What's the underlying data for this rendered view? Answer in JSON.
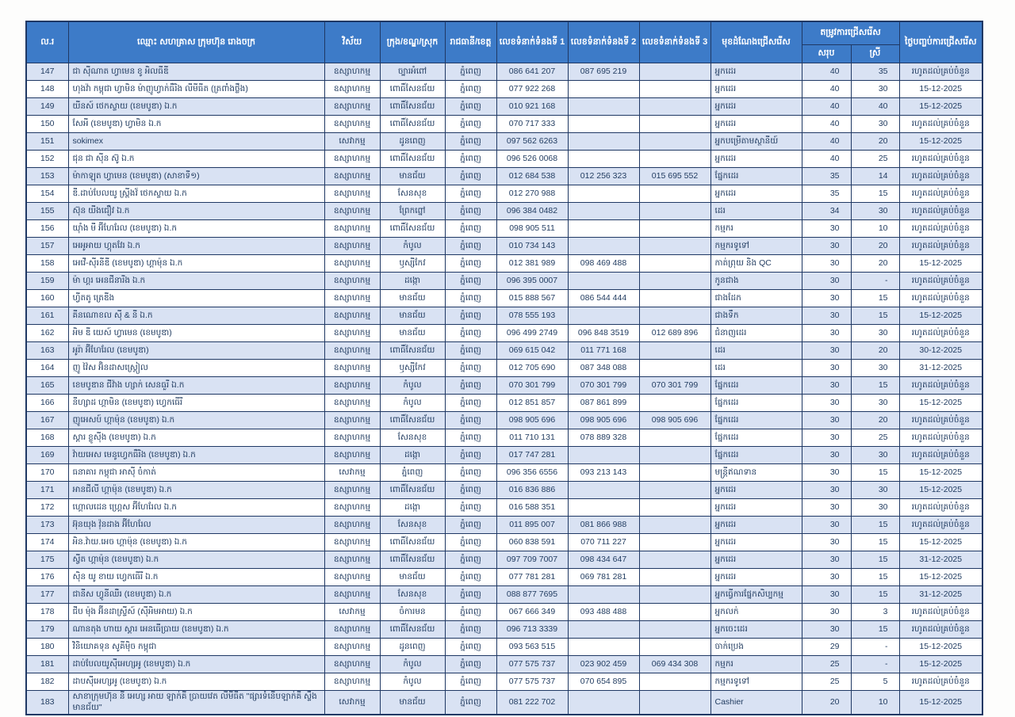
{
  "colors": {
    "header_bg": "#3d7bc8",
    "stripe_bg": "#d9e2f3",
    "border": "#1f3864",
    "text": "#1f3a5f"
  },
  "header": {
    "no": "ល.រ",
    "name": "ឈ្មោះ សហគ្រាស ក្រុមហ៊ុន រោងចក្រ",
    "sector": "វិស័យ",
    "district": "ក្រុង/ខណ្ឌ/ស្រុក",
    "province": "រាជធានី/ខេត្ត",
    "tel1": "លេខទំនាក់ទំនងទី 1",
    "tel2": "លេខទំនាក់ទំនងទី 2",
    "tel3": "លេខទំនាក់ទំនងទី 3",
    "position": "មុខដំណែងជ្រើសរើស",
    "need_group": "តម្រូវការជ្រើសរើស",
    "need_total": "សរុប",
    "need_female": "ស្រី",
    "deadline": "ថ្ងៃបញ្ចប់ការជ្រើសរើស"
  },
  "rows": [
    {
      "no": "147",
      "name": "ជា ស៊ីណាត ហ្វាមេន ខូ អិលធីឌី",
      "sector": "ឧស្សាហកម្ម",
      "district": "ច្បារអំពៅ",
      "province": "ភ្នំពេញ",
      "tel1": "086 641 207",
      "tel2": "087 695 219",
      "tel3": "",
      "position": "អ្នកដេរ",
      "total": "40",
      "female": "35",
      "deadline": "រហូតដល់គ្រប់ចំនួន"
    },
    {
      "no": "148",
      "name": "ហុងវ៉ា កម្ពុជា ហ្វាមិន ម៉ាញូហ្វាក់ធឺរិង លីមីធីត (ត្រពាំងថ្លឹង)",
      "sector": "ឧស្សាហកម្ម",
      "district": "ពោធិ៍សែនជ័យ",
      "province": "ភ្នំពេញ",
      "tel1": "077 922 268",
      "tel2": "",
      "tel3": "",
      "position": "អ្នកដេរ",
      "total": "40",
      "female": "30",
      "deadline": "15-12-2025"
    },
    {
      "no": "149",
      "name": "យីនស៍ ថេកស្ទាយ (ខេមបូឌា) ឯ.ក",
      "sector": "ឧស្សាហកម្ម",
      "district": "ពោធិ៍សែនជ័យ",
      "province": "ភ្នំពេញ",
      "tel1": "010 921 168",
      "tel2": "",
      "tel3": "",
      "position": "អ្នកដេរ",
      "total": "40",
      "female": "40",
      "deadline": "15-12-2025"
    },
    {
      "no": "150",
      "name": "សែអី (ខេមបូឌា) ហ្វាមិន ឯ.ក",
      "sector": "ឧស្សាហកម្ម",
      "district": "ពោធិ៍សែនជ័យ",
      "province": "ភ្នំពេញ",
      "tel1": "070 717 333",
      "tel2": "",
      "tel3": "",
      "position": "អ្នកដេរ",
      "total": "40",
      "female": "30",
      "deadline": "រហូតដល់គ្រប់ចំនួន"
    },
    {
      "no": "151",
      "name": "sokimex",
      "sector": "សេវាកម្ម",
      "district": "ដូនពេញ",
      "province": "ភ្នំពេញ",
      "tel1": "097 562 6263",
      "tel2": "",
      "tel3": "",
      "position": "អ្នកបម្រើតាមស្ថានីយ៍",
      "total": "40",
      "female": "20",
      "deadline": "15-12-2025"
    },
    {
      "no": "152",
      "name": "ជុន ជា ស៊ីន ស៊ូ ឯ.ក",
      "sector": "ឧស្សាហកម្ម",
      "district": "ពោធិ៍សែនជ័យ",
      "province": "ភ្នំពេញ",
      "tel1": "096 526 0068",
      "tel2": "",
      "tel3": "",
      "position": "អ្នកដេរ",
      "total": "40",
      "female": "25",
      "deadline": "រហូតដល់គ្រប់ចំនួន"
    },
    {
      "no": "153",
      "name": "ម៉ាកាឡុត ហ្វាមេន (ខេមបូឌា) (សាខាទី១)",
      "sector": "ឧស្សាហកម្ម",
      "district": "មានជ័យ",
      "province": "ភ្នំពេញ",
      "tel1": "012 684 538",
      "tel2": "012 256 323",
      "tel3": "015 695 552",
      "position": "ផ្នែកដេរ",
      "total": "35",
      "female": "14",
      "deadline": "រហូតដល់គ្រប់ចំនួន"
    },
    {
      "no": "154",
      "name": "ឌី.ដាប់បែលយូ ស្ព្រីងវ៍ ថេកស្ទាយ ឯ.ក",
      "sector": "ឧស្សាហកម្ម",
      "district": "សែនសុខ",
      "province": "ភ្នំពេញ",
      "tel1": "012 270 988",
      "tel2": "",
      "tel3": "",
      "position": "អ្នកដេរ",
      "total": "35",
      "female": "15",
      "deadline": "រហូតដល់គ្រប់ចំនួន"
    },
    {
      "no": "155",
      "name": "ស៊ុន យីងជឿវ ឯ.ក",
      "sector": "ឧស្សាហកម្ម",
      "district": "ព្រែកព្នៅ",
      "province": "ភ្នំពេញ",
      "tel1": "096 384 0482",
      "tel2": "",
      "tel3": "",
      "position": "ដេរ",
      "total": "34",
      "female": "30",
      "deadline": "រហូតដល់គ្រប់ចំនួន"
    },
    {
      "no": "156",
      "name": "យ៉ាំង មី អ៊ីហែរែល (ខេមបូឌា) ឯ.ក",
      "sector": "ឧស្សាហកម្ម",
      "district": "ពោធិ៍សែនជ័យ",
      "province": "ភ្នំពេញ",
      "tel1": "098 905 511",
      "tel2": "",
      "tel3": "",
      "position": "កម្មករ",
      "total": "30",
      "female": "10",
      "deadline": "រហូតដល់គ្រប់ចំនួន"
    },
    {
      "no": "157",
      "name": "អេអូអាយ ហ្គុតវែរ ឯ.ក",
      "sector": "ឧស្សាហកម្ម",
      "district": "កំបូល",
      "province": "ភ្នំពេញ",
      "tel1": "010 734 143",
      "tel2": "",
      "tel3": "",
      "position": "កម្មករទូទៅ",
      "total": "30",
      "female": "20",
      "deadline": "រហូតដល់គ្រប់ចំនួន"
    },
    {
      "no": "158",
      "name": "អេវើ-ស៊ីរនីឌី (ខេមបូឌា) ហ្គាម៉ុន ឯ.ក",
      "sector": "ឧស្សាហកម្ម",
      "district": "ឫស្សីកែវ",
      "province": "ភ្នំពេញ",
      "tel1": "012 381 989",
      "tel2": "098 469 488",
      "tel3": "",
      "position": "កាត់ព្រុយ និង QC",
      "total": "30",
      "female": "20",
      "deadline": "15-12-2025"
    },
    {
      "no": "159",
      "name": "ម៉ា ហ្គរ អេនជីនារីង ឯ.ក",
      "sector": "ឧស្សាហកម្ម",
      "district": "ដង្កោ",
      "province": "ភ្នំពេញ",
      "tel1": "096 395 0007",
      "tel2": "",
      "tel3": "",
      "position": "កូនជាង",
      "total": "30",
      "female": "-",
      "deadline": "រហូតដល់គ្រប់ចំនួន"
    },
    {
      "no": "160",
      "name": "ហ្វីតតូ ត្រេឌីង",
      "sector": "ឧស្សាហកម្ម",
      "district": "មានជ័យ",
      "province": "ភ្នំពេញ",
      "tel1": "015 888 567",
      "tel2": "086 544 444",
      "tel3": "",
      "position": "ជាងដែក",
      "total": "30",
      "female": "15",
      "deadline": "រហូតដល់គ្រប់ចំនួន"
    },
    {
      "no": "161",
      "name": "គីនណោខល ស៊ី & នី ឯ.ក",
      "sector": "ឧស្សាហកម្ម",
      "district": "មានជ័យ",
      "province": "ភ្នំពេញ",
      "tel1": "078 555 193",
      "tel2": "",
      "tel3": "",
      "position": "ជាងទឹក",
      "total": "30",
      "female": "15",
      "deadline": "15-12-2025"
    },
    {
      "no": "162",
      "name": "អិម ឌី យេស៍ ហ្វាមេន (ខេមបូឌា)",
      "sector": "ឧស្សាហកម្ម",
      "district": "មានជ័យ",
      "province": "ភ្នំពេញ",
      "tel1": "096 499 2749",
      "tel2": "096 848 3519",
      "tel3": "012 689 896",
      "position": "ជំនាញដេរ",
      "total": "30",
      "female": "30",
      "deadline": "រហូតដល់គ្រប់ចំនួន"
    },
    {
      "no": "163",
      "name": "អូរ៉ា អ៊ីហែរែល (ខេមបូឌា)",
      "sector": "ឧស្សាហកម្ម",
      "district": "ពោធិ៍សែនជ័យ",
      "province": "ភ្នំពេញ",
      "tel1": "069 615 042",
      "tel2": "011 771 168",
      "tel3": "",
      "position": "ដេរ",
      "total": "30",
      "female": "20",
      "deadline": "30-12-2025"
    },
    {
      "no": "164",
      "name": "ញូ វ៉ៃស អ៊ិនដាសស្ត្រៀល",
      "sector": "ឧស្សាហកម្ម",
      "district": "ឫស្សីកែវ",
      "province": "ភ្នំពេញ",
      "tel1": "012 705 690",
      "tel2": "087 348 088",
      "tel3": "",
      "position": "ដេរ",
      "total": "30",
      "female": "30",
      "deadline": "31-12-2025"
    },
    {
      "no": "165",
      "name": "ខេមបូឌាន ជីវ៉ាង ហ្សាក់ សេនធួរី ឯ.ក",
      "sector": "ឧស្សាហកម្ម",
      "district": "កំបូល",
      "province": "ភ្នំពេញ",
      "tel1": "070 301 799",
      "tel2": "070 301 799",
      "tel3": "070 301 799",
      "position": "ផ្នែកដេរ",
      "total": "30",
      "female": "15",
      "deadline": "រហូតដល់គ្រប់ចំនួន"
    },
    {
      "no": "166",
      "name": "នីហ្សាដ ហ្គាមិន (ខេមបូឌា) ហ្វេកធើរី",
      "sector": "ឧស្សាហកម្ម",
      "district": "កំបូល",
      "province": "ភ្នំពេញ",
      "tel1": "012 851 857",
      "tel2": "087 861 899",
      "tel3": "",
      "position": "ផ្នែកដេរ",
      "total": "30",
      "female": "30",
      "deadline": "15-12-2025"
    },
    {
      "no": "167",
      "name": "ញូអេសប៍ ហ្គាម៉ុន (ខេមបូឌា) ឯ.ក",
      "sector": "ឧស្សាហកម្ម",
      "district": "ពោធិ៍សែនជ័យ",
      "province": "ភ្នំពេញ",
      "tel1": "098 905 696",
      "tel2": "098 905 696",
      "tel3": "098 905 696",
      "position": "ផ្នែកដេរ",
      "total": "30",
      "female": "20",
      "deadline": "រហូតដល់គ្រប់ចំនួន"
    },
    {
      "no": "168",
      "name": "ស្គារ ខ្លូស៊ីង (ខេមបូឌា) ឯ.ក",
      "sector": "ឧស្សាហកម្ម",
      "district": "សែនសុខ",
      "province": "ភ្នំពេញ",
      "tel1": "011 710 131",
      "tel2": "078 889 328",
      "tel3": "",
      "position": "ផ្នែកដេរ",
      "total": "30",
      "female": "25",
      "deadline": "រហូតដល់គ្រប់ចំនួន"
    },
    {
      "no": "169",
      "name": "វ៉ាយអេស មេនូហ្វេកធឺរិង (ខេមបូឌា) ឯ.ក",
      "sector": "ឧស្សាហកម្ម",
      "district": "ដង្កោ",
      "province": "ភ្នំពេញ",
      "tel1": "017 747 281",
      "tel2": "",
      "tel3": "",
      "position": "ផ្នែកដេរ",
      "total": "30",
      "female": "30",
      "deadline": "រហូតដល់គ្រប់ចំនួន"
    },
    {
      "no": "170",
      "name": "ធនាគារ កម្ពុជា អាស៊ី ចំកាត់",
      "sector": "សេវាកម្ម",
      "district": "ភ្នំពេញ",
      "province": "ភ្នំពេញ",
      "tel1": "096 356 6556",
      "tel2": "093 213 143",
      "tel3": "",
      "position": "មន្ត្រីឥណទាន",
      "total": "30",
      "female": "15",
      "deadline": "15-12-2025"
    },
    {
      "no": "171",
      "name": "អានជីលី ហ្គាម៉ុន (ខេមបូឌា) ឯ.ក",
      "sector": "ឧស្សាហកម្ម",
      "district": "ពោធិ៍សែនជ័យ",
      "province": "ភ្នំពេញ",
      "tel1": "016 836 886",
      "tel2": "",
      "tel3": "",
      "position": "អ្នកដេរ",
      "total": "30",
      "female": "30",
      "deadline": "15-12-2025"
    },
    {
      "no": "172",
      "name": "ហ្គោលដេន ហ្គ្រេស អ៊ីហែរែល ឯ.ក",
      "sector": "ឧស្សាហកម្ម",
      "district": "ដង្កោ",
      "province": "ភ្នំពេញ",
      "tel1": "016 588 351",
      "tel2": "",
      "tel3": "",
      "position": "អ្នកដេរ",
      "total": "30",
      "female": "30",
      "deadline": "រហូតដល់គ្រប់ចំនួន"
    },
    {
      "no": "173",
      "name": "អ៊ុនយុង វ៉ុនដាង អ៊ីហែរែល",
      "sector": "ឧស្សាហកម្ម",
      "district": "សែនសុខ",
      "province": "ភ្នំពេញ",
      "tel1": "011 895 007",
      "tel2": "081 866 988",
      "tel3": "",
      "position": "អ្នកដេរ",
      "total": "30",
      "female": "15",
      "deadline": "រហូតដល់គ្រប់ចំនួន"
    },
    {
      "no": "174",
      "name": "អិន.វ៉ាយ.អេច ហ្គាម៉ុន (ខេមបូឌា) ឯ.ក",
      "sector": "ឧស្សាហកម្ម",
      "district": "ពោធិ៍សែនជ័យ",
      "province": "ភ្នំពេញ",
      "tel1": "060 838 591",
      "tel2": "070 711 227",
      "tel3": "",
      "position": "អ្នកដេរ",
      "total": "30",
      "female": "15",
      "deadline": "15-12-2025"
    },
    {
      "no": "175",
      "name": "ស្វីត ហ្គាម៉ុន (ខេមបូឌា) ឯ.ក",
      "sector": "ឧស្សាហកម្ម",
      "district": "ពោធិ៍សែនជ័យ",
      "province": "ភ្នំពេញ",
      "tel1": "097 709 7007",
      "tel2": "098 434 647",
      "tel3": "",
      "position": "អ្នកដេរ",
      "total": "30",
      "female": "15",
      "deadline": "31-12-2025"
    },
    {
      "no": "176",
      "name": "ស៊ិន យូ ខាយ ហ្វេកធើរី ឯ.ក",
      "sector": "ឧស្សាហកម្ម",
      "district": "មានជ័យ",
      "province": "ភ្នំពេញ",
      "tel1": "077 781 281",
      "tel2": "069 781 281",
      "tel3": "",
      "position": "អ្នកដេរ",
      "total": "30",
      "female": "15",
      "deadline": "15-12-2025"
    },
    {
      "no": "177",
      "name": "ជានីស ហ្វូនីឈឺរ (ខេមបូឌា) ឯ.ក",
      "sector": "ឧស្សាហកម្ម",
      "district": "សែនសុខ",
      "province": "ភ្នំពេញ",
      "tel1": "088 877 7695",
      "tel2": "",
      "tel3": "",
      "position": "អ្នកធ្វើការផ្នែកសិប្បកម្ម",
      "total": "30",
      "female": "15",
      "deadline": "31-12-2025"
    },
    {
      "no": "178",
      "name": "ជីប ម៉ុង អ៊ីនដាស្ទ្រីស៍ (ស៊ីអិមអាយ) ឯ.ក",
      "sector": "សេវាកម្ម",
      "district": "ចំការមន",
      "province": "ភ្នំពេញ",
      "tel1": "067 666 349",
      "tel2": "093 488 488",
      "tel3": "",
      "position": "អ្នកលក់",
      "total": "30",
      "female": "3",
      "deadline": "រហូតដល់គ្រប់ចំនួន"
    },
    {
      "no": "179",
      "name": "ណានតុង ហាយ ស្គារ អេនធើប្រាយ (ខេមបូឌា) ឯ.ក",
      "sector": "ឧស្សាហកម្ម",
      "district": "ពោធិ៍សែនជ័យ",
      "province": "ភ្នំពេញ",
      "tel1": "096 713 3339",
      "tel2": "",
      "tel3": "",
      "position": "អ្នកចេះដេរ",
      "total": "30",
      "female": "15",
      "deadline": "រហូតដល់គ្រប់ចំនួន"
    },
    {
      "no": "180",
      "name": "វិនិយោគទុន សូគីម៉ិច កម្ពុជា",
      "sector": "ឧស្សាហកម្ម",
      "district": "ដូនពេញ",
      "province": "ភ្នំពេញ",
      "tel1": "093 563 515",
      "tel2": "",
      "tel3": "",
      "position": "ចាក់ប្រេង",
      "total": "29",
      "female": "-",
      "deadline": "15-12-2025"
    },
    {
      "no": "181",
      "name": "ដាប់បែលយូស៊ីអេហ្សអូ (ខេមបូឌា) ឯ.ក",
      "sector": "ឧស្សាហកម្ម",
      "district": "កំបូល",
      "province": "ភ្នំពេញ",
      "tel1": "077 575 737",
      "tel2": "023 902 459",
      "tel3": "069 434 308",
      "position": "កម្មករ",
      "total": "25",
      "female": "-",
      "deadline": "15-12-2025"
    },
    {
      "no": "182",
      "name": "ដាបស៊ីអេហ្សអូ (ខេមបូឌា) ឯ.ក",
      "sector": "ឧស្សាហកម្ម",
      "district": "កំបូល",
      "province": "ភ្នំពេញ",
      "tel1": "077 575 737",
      "tel2": "070 654 895",
      "tel3": "",
      "position": "កម្មករទូទៅ",
      "total": "25",
      "female": "5",
      "deadline": "រហូតដល់គ្រប់ចំនួន"
    },
    {
      "no": "183",
      "name": "សាខាក្រុមហ៊ុន នី អេហ្ស អាយ ឡាក់គី ប្រាយវេត លីមីធីត \"ផ្សារទំនើបឡាក់គី ស្ទឹង មានជ័យ\"",
      "sector": "សេវាកម្ម",
      "district": "មានជ័យ",
      "province": "ភ្នំពេញ",
      "tel1": "081 222 702",
      "tel2": "",
      "tel3": "",
      "position": "Cashier",
      "total": "20",
      "female": "10",
      "deadline": "15-12-2025"
    }
  ]
}
